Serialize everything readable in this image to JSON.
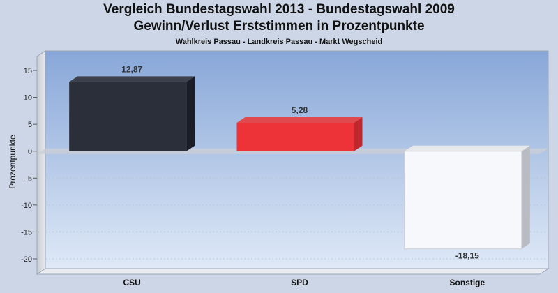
{
  "chart_data": {
    "type": "bar",
    "title": "Vergleich Bundestagswahl 2013 - Bundestagswahl 2009",
    "subtitle_line2": "Gewinn/Verlust Erststimmen in Prozentpunkte",
    "caption": "Wahlkreis Passau - Landkreis Passau - Markt Wegscheid",
    "ylabel": "Prozentpunkte",
    "xlabel": "",
    "ylim": [
      -20,
      15
    ],
    "yticks": [
      "15",
      "10",
      "5",
      "0",
      "-5",
      "-10",
      "-15",
      "-20"
    ],
    "categories": [
      "CSU",
      "SPD",
      "Sonstige"
    ],
    "values": [
      12.87,
      5.28,
      -18.15
    ],
    "value_labels": [
      "12,87",
      "5,28",
      "-18,15"
    ],
    "colors": [
      "#2b2f3a",
      "#ee3338",
      "#f7f8fb"
    ],
    "grid": true,
    "legend": "none"
  }
}
